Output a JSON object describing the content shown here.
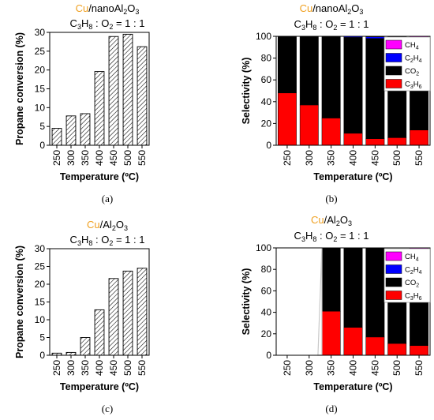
{
  "colors": {
    "title_accent": "#f0a020",
    "hatch": "#000000",
    "CH4": "#ff00ff",
    "C2H4": "#0000ff",
    "CO2": "#000000",
    "C3H6": "#ff0000",
    "missing_band": "#c8c8c8"
  },
  "chart_data": [
    {
      "panel": "a",
      "caption": "(a)",
      "type": "bar",
      "fill": "hatched",
      "title_parts": {
        "metal": "Cu",
        "support": "/nanoAl",
        "sub1": "2",
        "o": "O",
        "sub2": "3"
      },
      "subtitle": {
        "c": "C",
        "c_sub": "3",
        "h": "H",
        "h_sub": "8",
        "o2": " : O",
        "o_sub": "2",
        "ratio": " = 1 : 1"
      },
      "xlabel": "Temperature (ºC)",
      "ylabel": "Propane conversion (%)",
      "categories": [
        "250",
        "300",
        "350",
        "400",
        "450",
        "500",
        "550"
      ],
      "values": [
        4.5,
        7.8,
        8.4,
        19.6,
        28.9,
        29.5,
        26.2
      ],
      "ylim": [
        0,
        30
      ],
      "yticks": [
        0,
        5,
        10,
        15,
        20,
        25,
        30
      ]
    },
    {
      "panel": "b",
      "caption": "(b)",
      "type": "bar",
      "stacked": true,
      "title_parts": {
        "metal": "Cu",
        "support": "/nanoAl",
        "sub1": "2",
        "o": "O",
        "sub2": "3"
      },
      "subtitle": {
        "c": "C",
        "c_sub": "3",
        "h": "H",
        "h_sub": "8",
        "o2": " : O",
        "o_sub": "2",
        "ratio": " = 1 : 1"
      },
      "xlabel": "Temperature (ºC)",
      "ylabel": "Selectivity (%)",
      "categories": [
        "250",
        "300",
        "350",
        "400",
        "450",
        "500",
        "550"
      ],
      "series": [
        {
          "name": "C3H6",
          "values": [
            48,
            37,
            25,
            11,
            6,
            7,
            14
          ]
        },
        {
          "name": "CO2",
          "values": [
            52,
            63,
            75,
            88,
            92,
            91,
            81
          ]
        },
        {
          "name": "C2H4",
          "values": [
            0,
            0,
            0,
            1,
            1.5,
            1.5,
            3
          ]
        },
        {
          "name": "CH4",
          "values": [
            0,
            0,
            0,
            0,
            0.5,
            0.5,
            2
          ]
        }
      ],
      "legend": [
        {
          "key": "CH4",
          "base": "CH",
          "sub": "4"
        },
        {
          "key": "C2H4",
          "base": "C",
          "sub": "2",
          "base2": "H",
          "sub2": "4"
        },
        {
          "key": "CO2",
          "base": "CO",
          "sub": "2"
        },
        {
          "key": "C3H6",
          "base": "C",
          "sub": "3",
          "base2": "H",
          "sub2": "6"
        }
      ],
      "legend_position": "top-right",
      "ylim": [
        0,
        100
      ],
      "yticks": [
        0,
        20,
        40,
        60,
        80,
        100
      ]
    },
    {
      "panel": "c",
      "caption": "(c)",
      "type": "bar",
      "fill": "hatched",
      "title_parts": {
        "metal": "Cu",
        "support": "/Al",
        "sub1": "2",
        "o": "O",
        "sub2": "3"
      },
      "subtitle": {
        "c": "C",
        "c_sub": "3",
        "h": "H",
        "h_sub": "8",
        "o2": " : O",
        "o_sub": "2",
        "ratio": " = 1 : 1"
      },
      "xlabel": "Temperature (ºC)",
      "ylabel": "Propane conversion (%)",
      "categories": [
        "250",
        "300",
        "350",
        "400",
        "450",
        "500",
        "550"
      ],
      "values": [
        0.6,
        0.8,
        5.0,
        12.8,
        21.6,
        23.7,
        24.5
      ],
      "ylim": [
        0,
        30
      ],
      "yticks": [
        0,
        5,
        10,
        15,
        20,
        25,
        30
      ]
    },
    {
      "panel": "d",
      "caption": "(d)",
      "type": "bar",
      "stacked": true,
      "title_parts": {
        "metal": "Cu",
        "support": "/Al",
        "sub1": "2",
        "o": "O",
        "sub2": "3"
      },
      "subtitle": {
        "c": "C",
        "c_sub": "3",
        "h": "H",
        "h_sub": "8",
        "o2": " : O",
        "o_sub": "2",
        "ratio": " = 1 : 1"
      },
      "xlabel": "Temperature (ºC)",
      "ylabel": "Selectivity (%)",
      "categories": [
        "250",
        "300",
        "350",
        "400",
        "450",
        "500",
        "550"
      ],
      "series": [
        {
          "name": "C3H6",
          "values": [
            0,
            0,
            41,
            26,
            17,
            11,
            9
          ]
        },
        {
          "name": "CO2",
          "values": [
            0,
            0,
            59,
            74,
            83,
            84,
            85
          ]
        },
        {
          "name": "C2H4",
          "values": [
            0,
            0,
            0,
            0,
            0,
            4,
            5
          ]
        },
        {
          "name": "CH4",
          "values": [
            0,
            0,
            0,
            0,
            0,
            0,
            1
          ]
        }
      ],
      "legend": [
        {
          "key": "CH4",
          "base": "CH",
          "sub": "4"
        },
        {
          "key": "C2H4",
          "base": "C",
          "sub": "2",
          "base2": "H",
          "sub2": "4"
        },
        {
          "key": "CO2",
          "base": "CO",
          "sub": "2"
        },
        {
          "key": "C3H6",
          "base": "C",
          "sub": "3",
          "base2": "H",
          "sub2": "6"
        }
      ],
      "legend_position": "top-right",
      "ylim": [
        0,
        100
      ],
      "yticks": [
        0,
        20,
        40,
        60,
        80,
        100
      ]
    }
  ]
}
